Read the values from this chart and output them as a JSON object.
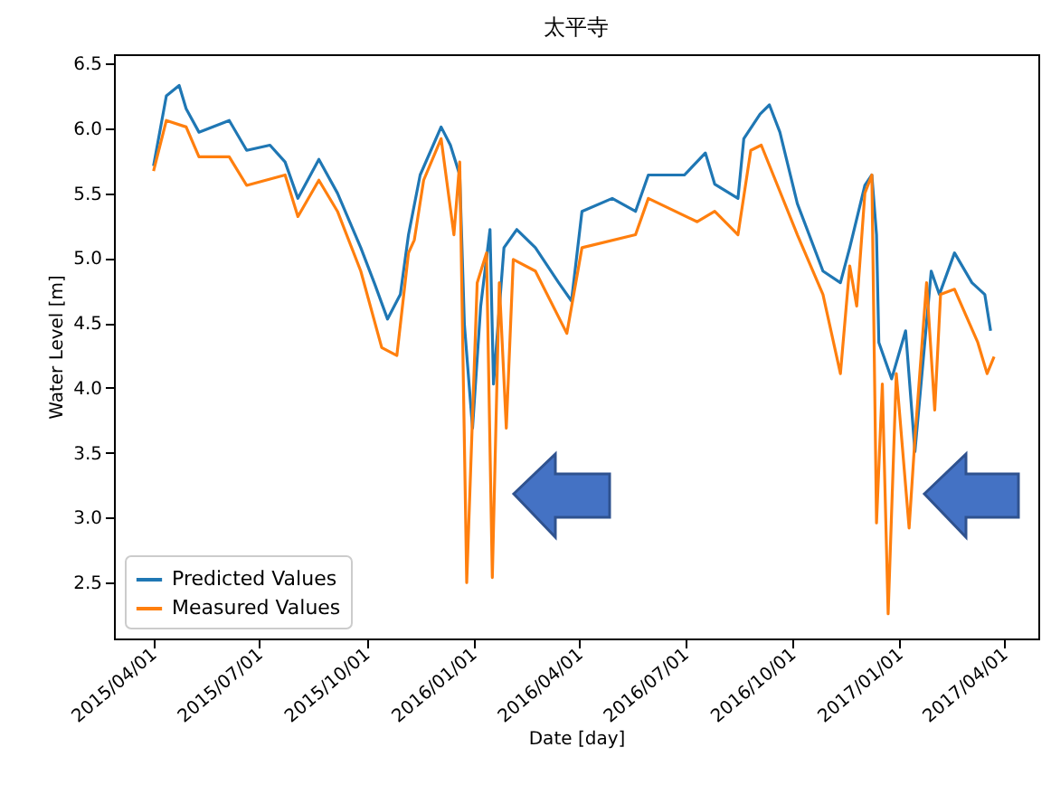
{
  "chart_data": {
    "type": "line",
    "title": "太平寺",
    "xlabel": "Date [day]",
    "ylabel": "Water Level [m]",
    "xlim": [
      "2015-02-26",
      "2017-04-30"
    ],
    "ylim": [
      2.07,
      6.57
    ],
    "xticks": [
      {
        "value": "2015-04-01",
        "label": "2015/04/01"
      },
      {
        "value": "2015-07-01",
        "label": "2015/07/01"
      },
      {
        "value": "2015-10-01",
        "label": "2015/10/01"
      },
      {
        "value": "2016-01-01",
        "label": "2016/01/01"
      },
      {
        "value": "2016-04-01",
        "label": "2016/04/01"
      },
      {
        "value": "2016-07-01",
        "label": "2016/07/01"
      },
      {
        "value": "2016-10-01",
        "label": "2016/10/01"
      },
      {
        "value": "2017-01-01",
        "label": "2017/01/01"
      },
      {
        "value": "2017-04-01",
        "label": "2017/04/01"
      }
    ],
    "yticks": [
      {
        "value": 2.5,
        "label": "2.5"
      },
      {
        "value": 3,
        "label": "3.0"
      },
      {
        "value": 3.5,
        "label": "3.5"
      },
      {
        "value": 4,
        "label": "4.0"
      },
      {
        "value": 4.5,
        "label": "4.5"
      },
      {
        "value": 5,
        "label": "5.0"
      },
      {
        "value": 5.5,
        "label": "5.5"
      },
      {
        "value": 6,
        "label": "6.0"
      },
      {
        "value": 6.5,
        "label": "6.5"
      }
    ],
    "grid": false,
    "legend": "bottom left",
    "series": [
      {
        "name": "Predicted Values",
        "color": "#1f77b4",
        "x": [
          "2015-04-01",
          "2015-04-12",
          "2015-04-23",
          "2015-04-29",
          "2015-05-10",
          "2015-06-05",
          "2015-06-20",
          "2015-07-10",
          "2015-07-23",
          "2015-08-03",
          "2015-08-21",
          "2015-09-06",
          "2015-09-26",
          "2015-10-08",
          "2015-10-19",
          "2015-10-30",
          "2015-11-06",
          "2015-11-16",
          "2015-12-04",
          "2015-12-12",
          "2015-12-20",
          "2015-12-24",
          "2015-12-31",
          "2016-01-07",
          "2016-01-15",
          "2016-01-18",
          "2016-01-27",
          "2016-02-07",
          "2016-02-23",
          "2016-03-14",
          "2016-03-25",
          "2016-04-03",
          "2016-04-29",
          "2016-05-19",
          "2016-05-30",
          "2016-06-30",
          "2016-07-18",
          "2016-07-26",
          "2016-08-15",
          "2016-08-20",
          "2016-09-03",
          "2016-09-11",
          "2016-09-20",
          "2016-10-05",
          "2016-10-27",
          "2016-11-11",
          "2016-11-19",
          "2016-12-02",
          "2016-12-08",
          "2016-12-12",
          "2016-12-14",
          "2016-12-25",
          "2017-01-06",
          "2017-01-14",
          "2017-01-28",
          "2017-02-04",
          "2017-02-17",
          "2017-03-04",
          "2017-03-15",
          "2017-03-20"
        ],
        "values": [
          5.71,
          6.25,
          6.33,
          6.15,
          5.97,
          6.06,
          5.83,
          5.87,
          5.74,
          5.46,
          5.76,
          5.5,
          5.08,
          4.8,
          4.53,
          4.72,
          5.18,
          5.64,
          6.01,
          5.87,
          5.64,
          4.49,
          3.69,
          4.63,
          5.22,
          4.03,
          5.08,
          5.22,
          5.08,
          4.81,
          4.67,
          5.36,
          5.46,
          5.36,
          5.64,
          5.64,
          5.81,
          5.57,
          5.46,
          5.92,
          6.11,
          6.18,
          5.97,
          5.42,
          4.9,
          4.81,
          5.08,
          5.56,
          5.64,
          5.18,
          4.35,
          4.07,
          4.44,
          3.51,
          4.9,
          4.72,
          5.04,
          4.81,
          4.72,
          4.44
        ]
      },
      {
        "name": "Measured Values",
        "color": "#ff7f0e",
        "x": [
          "2015-04-01",
          "2015-04-12",
          "2015-04-29",
          "2015-05-10",
          "2015-06-05",
          "2015-06-20",
          "2015-07-23",
          "2015-08-03",
          "2015-08-21",
          "2015-09-06",
          "2015-09-26",
          "2015-10-14",
          "2015-10-27",
          "2015-11-06",
          "2015-11-11",
          "2015-11-19",
          "2015-12-04",
          "2015-12-15",
          "2015-12-20",
          "2015-12-26",
          "2016-01-04",
          "2016-01-12",
          "2016-01-17",
          "2016-01-23",
          "2016-01-29",
          "2016-02-04",
          "2016-02-23",
          "2016-03-21",
          "2016-04-03",
          "2016-05-19",
          "2016-05-30",
          "2016-07-11",
          "2016-07-26",
          "2016-08-15",
          "2016-08-26",
          "2016-09-04",
          "2016-10-05",
          "2016-10-27",
          "2016-11-11",
          "2016-11-19",
          "2016-11-25",
          "2016-12-02",
          "2016-12-08",
          "2016-12-12",
          "2016-12-17",
          "2016-12-22",
          "2016-12-29",
          "2017-01-09",
          "2017-01-14",
          "2017-01-24",
          "2017-01-31",
          "2017-02-05",
          "2017-02-17",
          "2017-03-09",
          "2017-03-17",
          "2017-03-23"
        ],
        "values": [
          5.67,
          6.06,
          6.01,
          5.78,
          5.78,
          5.56,
          5.64,
          5.32,
          5.6,
          5.36,
          4.9,
          4.31,
          4.25,
          5.04,
          5.14,
          5.6,
          5.92,
          5.18,
          5.74,
          2.5,
          4.81,
          5.04,
          2.54,
          4.81,
          3.69,
          4.99,
          4.9,
          4.42,
          5.08,
          5.18,
          5.46,
          5.28,
          5.36,
          5.18,
          5.83,
          5.87,
          5.18,
          4.72,
          4.11,
          4.94,
          4.63,
          5.5,
          5.64,
          2.96,
          4.03,
          2.26,
          4.11,
          2.92,
          3.61,
          4.81,
          3.83,
          4.72,
          4.76,
          4.35,
          4.11,
          4.24
        ]
      }
    ]
  }
}
